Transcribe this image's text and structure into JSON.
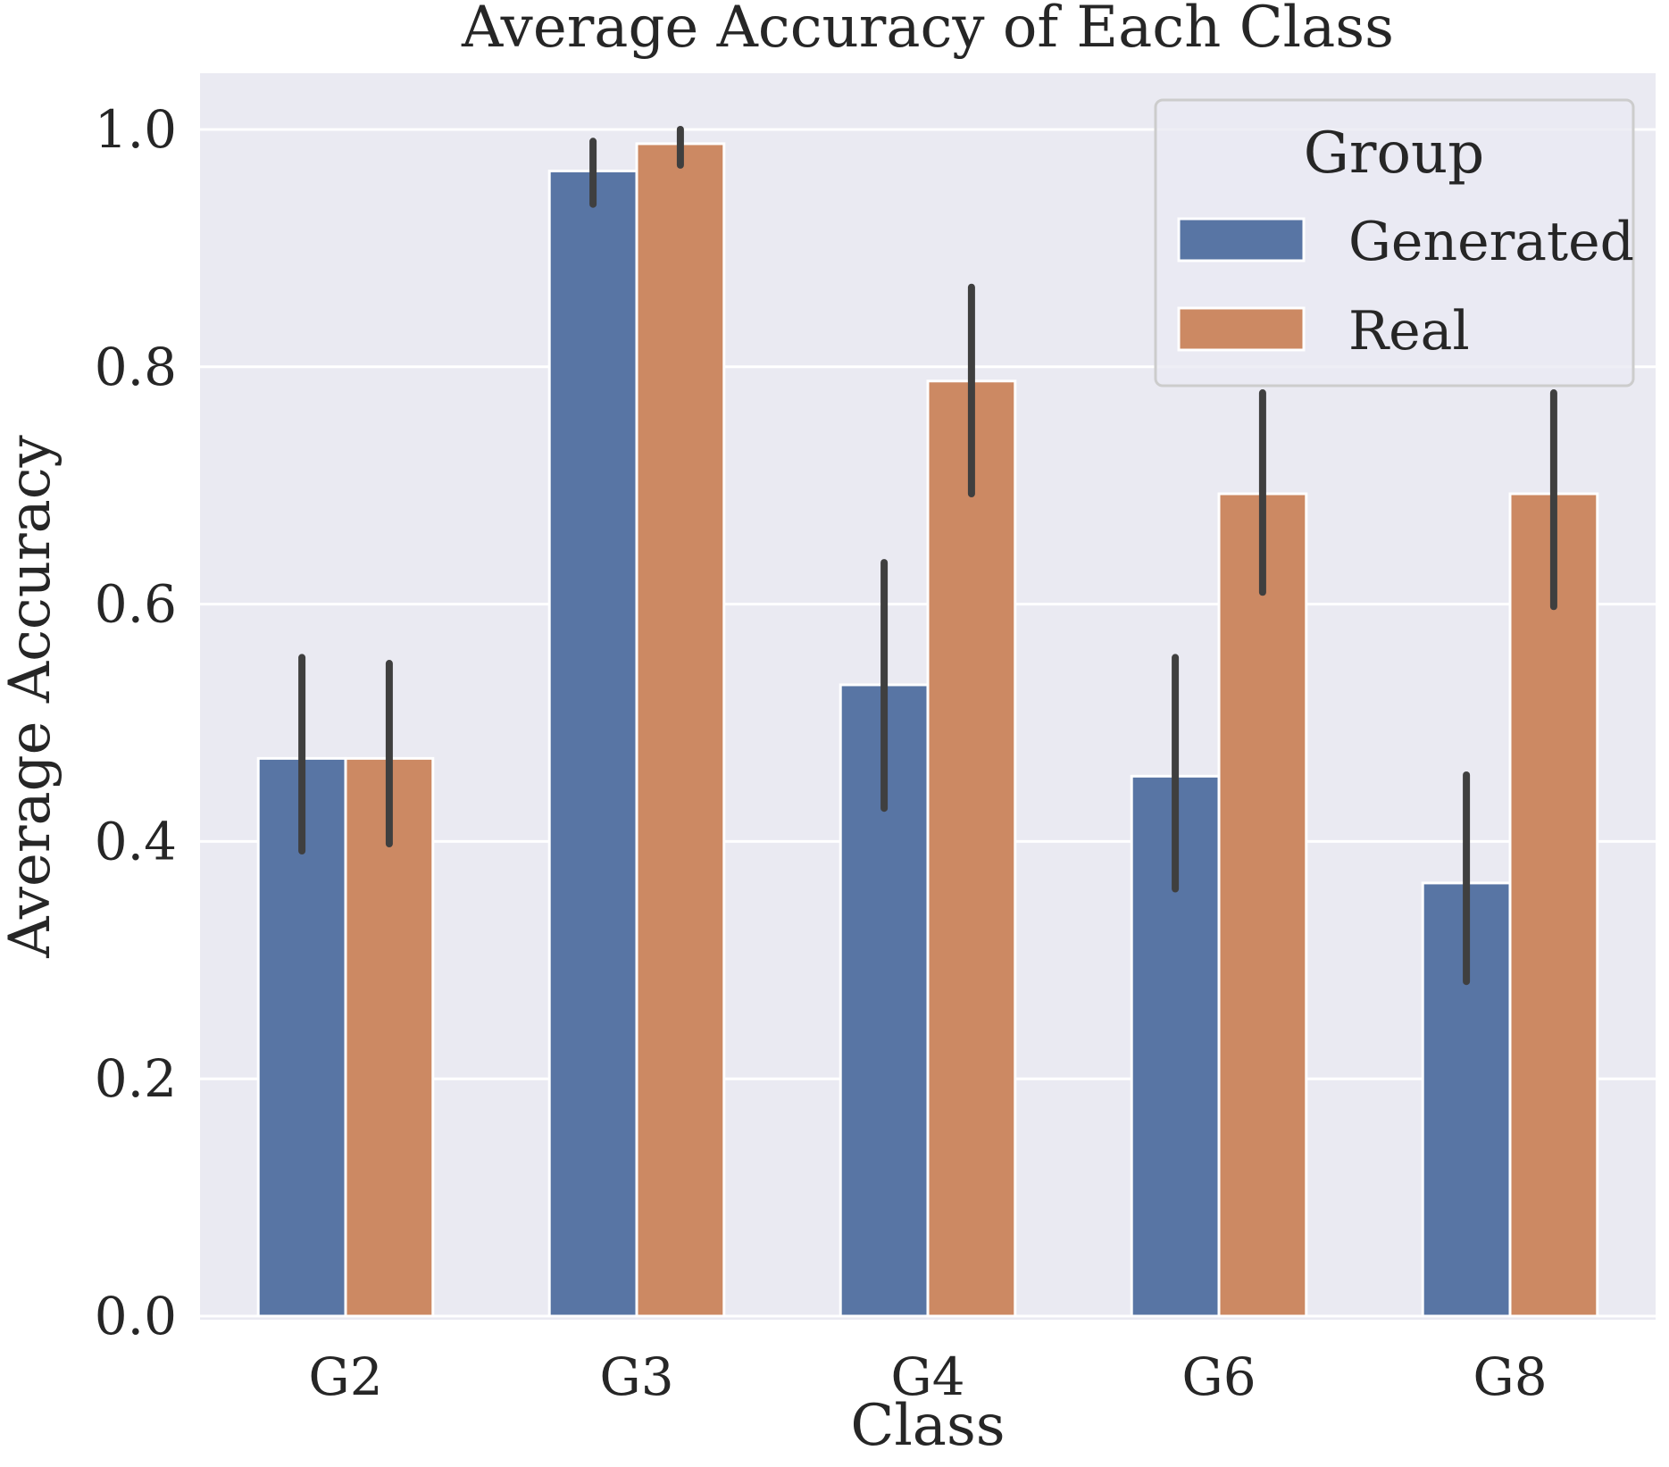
{
  "chart_data": {
    "type": "bar",
    "title": "Average Accuracy of Each Class",
    "xlabel": "Class",
    "ylabel": "Average Accuracy",
    "categories": [
      "G2",
      "G3",
      "G4",
      "G6",
      "G8"
    ],
    "ylim": [
      0,
      1.05
    ],
    "yticks": [
      0.0,
      0.2,
      0.4,
      0.6,
      0.8,
      1.0
    ],
    "ytick_labels": [
      "0.0",
      "0.2",
      "0.4",
      "0.6",
      "0.8",
      "1.0"
    ],
    "grid": true,
    "legend": {
      "title": "Group",
      "placement": "top-right",
      "entries": [
        "Generated",
        "Real"
      ]
    },
    "series": [
      {
        "name": "Generated",
        "color": "#5875a4",
        "values": [
          0.47,
          0.965,
          0.532,
          0.455,
          0.365
        ],
        "error_low": [
          0.392,
          0.937,
          0.428,
          0.36,
          0.282
        ],
        "error_high": [
          0.555,
          0.99,
          0.635,
          0.555,
          0.456
        ]
      },
      {
        "name": "Real",
        "color": "#cc8963",
        "values": [
          0.47,
          0.988,
          0.788,
          0.693,
          0.693
        ],
        "error_low": [
          0.398,
          0.97,
          0.693,
          0.61,
          0.598
        ],
        "error_high": [
          0.55,
          1.0,
          0.867,
          0.778,
          0.778
        ]
      }
    ],
    "error_bar_color": "#3f3f3f",
    "background_color": "#eaeaf2",
    "grid_color": "#ffffff"
  }
}
